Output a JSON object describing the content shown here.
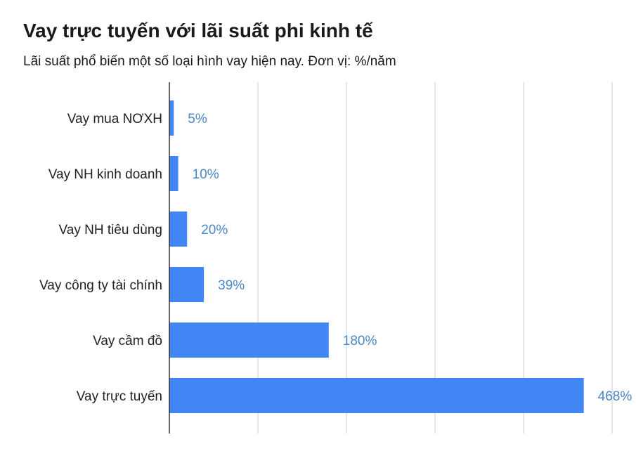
{
  "chart_data": {
    "type": "bar",
    "orientation": "horizontal",
    "title": "Vay trực tuyến với lãi suất phi kinh tế",
    "subtitle": "Lãi suất phổ biến một số loại hình vay hiện nay. Đơn vị: %/năm",
    "categories": [
      "Vay mua NƠXH",
      "Vay NH kinh doanh",
      "Vay NH tiêu dùng",
      "Vay công ty tài chính",
      "Vay cầm đồ",
      "Vay trực tuyến"
    ],
    "values": [
      5,
      10,
      20,
      39,
      180,
      468
    ],
    "value_labels": [
      "5%",
      "10%",
      "20%",
      "39%",
      "180%",
      "468%"
    ],
    "xlim": [
      0,
      500
    ],
    "gridlines": [
      0,
      100,
      200,
      300,
      400,
      500
    ],
    "grid": true,
    "colors": {
      "bar": "#4285f4",
      "value_label": "#4a86c8",
      "grid": "#cccccc",
      "axis": "#333333"
    }
  }
}
